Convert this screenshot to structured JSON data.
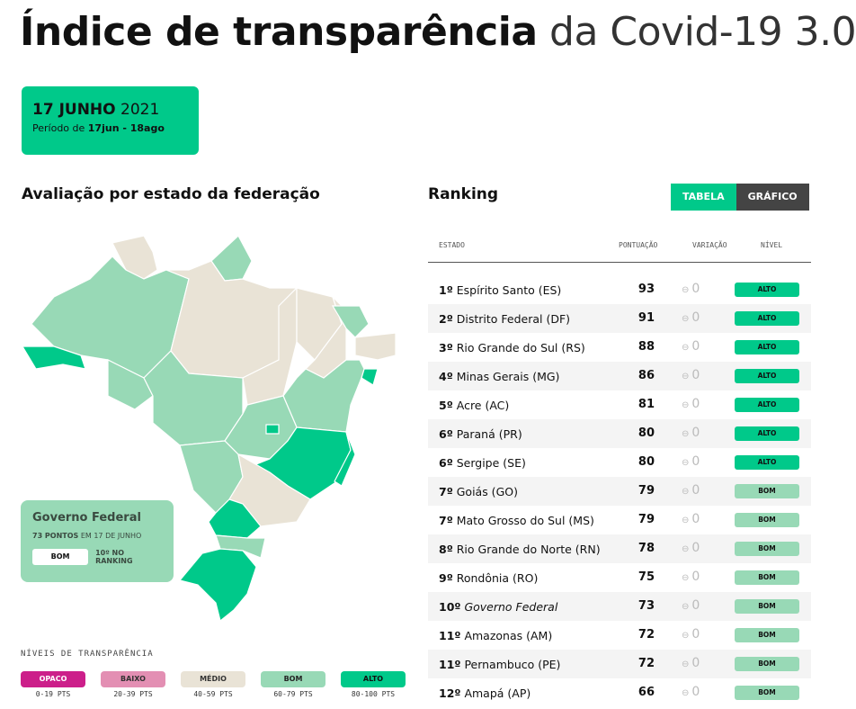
{
  "title": {
    "bold": "Índice de transparência",
    "light": "da Covid-19 3.0"
  },
  "date": {
    "day": "17 JUNHO",
    "year": "2021",
    "period_prefix": "Período de",
    "period": "17jun - 18ago"
  },
  "map_section": {
    "title": "Avaliação por estado da federação"
  },
  "gov_card": {
    "title": "Governo Federal",
    "points": "73 PONTOS",
    "date": "EM 17 DE JUNHO",
    "level": "BOM",
    "ranking": "10º NO RANKING"
  },
  "legend": {
    "title": "NÍVEIS DE TRANSPARÊNCIA",
    "items": [
      {
        "label": "OPACO",
        "range": "0-19 PTS",
        "color": "#cc1f8a",
        "text": "#fff"
      },
      {
        "label": "BAIXO",
        "range": "20-39 PTS",
        "color": "#e38fb3",
        "text": "#333"
      },
      {
        "label": "MÉDIO",
        "range": "40-59 PTS",
        "color": "#e9e3d6",
        "text": "#333"
      },
      {
        "label": "BOM",
        "range": "60-79 PTS",
        "color": "#98d9b6",
        "text": "#222"
      },
      {
        "label": "ALTO",
        "range": "80-100 PTS",
        "color": "#00c98a",
        "text": "#111"
      }
    ]
  },
  "ranking": {
    "title": "Ranking",
    "tabs": {
      "table": "TABELA",
      "chart": "GRÁFICO"
    },
    "headers": {
      "state": "ESTADO",
      "score": "PONTUAÇÃO",
      "variation": "VARIAÇÃO",
      "level": "NÍVEL"
    },
    "rows": [
      {
        "pos": "1º",
        "name": "Espírito Santo (ES)",
        "score": "93",
        "var": "0",
        "level": "ALTO"
      },
      {
        "pos": "2º",
        "name": "Distrito Federal (DF)",
        "score": "91",
        "var": "0",
        "level": "ALTO"
      },
      {
        "pos": "3º",
        "name": "Rio Grande do Sul (RS)",
        "score": "88",
        "var": "0",
        "level": "ALTO"
      },
      {
        "pos": "4º",
        "name": "Minas Gerais (MG)",
        "score": "86",
        "var": "0",
        "level": "ALTO"
      },
      {
        "pos": "5º",
        "name": "Acre (AC)",
        "score": "81",
        "var": "0",
        "level": "ALTO"
      },
      {
        "pos": "6º",
        "name": "Paraná (PR)",
        "score": "80",
        "var": "0",
        "level": "ALTO"
      },
      {
        "pos": "6º",
        "name": "Sergipe (SE)",
        "score": "80",
        "var": "0",
        "level": "ALTO"
      },
      {
        "pos": "7º",
        "name": "Goiás (GO)",
        "score": "79",
        "var": "0",
        "level": "BOM"
      },
      {
        "pos": "7º",
        "name": "Mato Grosso do Sul (MS)",
        "score": "79",
        "var": "0",
        "level": "BOM"
      },
      {
        "pos": "8º",
        "name": "Rio Grande do Norte (RN)",
        "score": "78",
        "var": "0",
        "level": "BOM"
      },
      {
        "pos": "9º",
        "name": "Rondônia (RO)",
        "score": "75",
        "var": "0",
        "level": "BOM"
      },
      {
        "pos": "10º",
        "name": "Governo Federal",
        "score": "73",
        "var": "0",
        "level": "BOM",
        "italic": true
      },
      {
        "pos": "11º",
        "name": "Amazonas (AM)",
        "score": "72",
        "var": "0",
        "level": "BOM"
      },
      {
        "pos": "11º",
        "name": "Pernambuco (PE)",
        "score": "72",
        "var": "0",
        "level": "BOM"
      },
      {
        "pos": "12º",
        "name": "Amapá (AP)",
        "score": "66",
        "var": "0",
        "level": "BOM"
      }
    ]
  }
}
